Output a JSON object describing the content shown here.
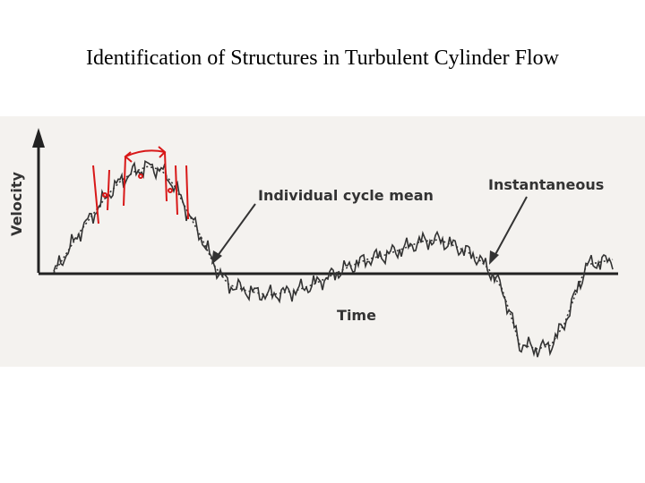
{
  "title": "Identification of Structures in Turbulent Cylinder Flow",
  "figure": {
    "y_axis_label": "Velocity",
    "x_axis_label": "Time",
    "annotations": [
      "Individual cycle mean",
      "Instantaneous"
    ]
  }
}
